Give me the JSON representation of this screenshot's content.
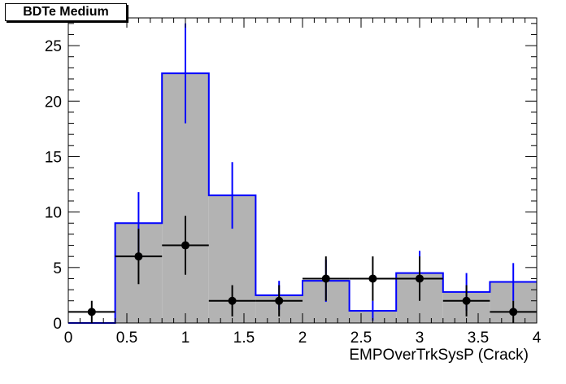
{
  "chart_data": {
    "type": "histogram",
    "title": "BDTe Medium",
    "xlabel": "EMPOverTrkSysP (Crack)",
    "ylabel": "",
    "xlim": [
      0,
      4
    ],
    "ylim": [
      0,
      27.5
    ],
    "x_ticks": [
      "0",
      "0.5",
      "1",
      "1.5",
      "2",
      "2.5",
      "3",
      "3.5",
      "4"
    ],
    "y_ticks": [
      "0",
      "5",
      "10",
      "15",
      "20",
      "25"
    ],
    "grid": false,
    "colors": {
      "mc_fill": "#b3b3b3",
      "mc_line": "#0000ff",
      "data": "#000000"
    },
    "series": [
      {
        "kind": "mc-histogram",
        "bins": [
          {
            "lo": 0.0,
            "hi": 0.4,
            "value": 0.0,
            "err": 0.0
          },
          {
            "lo": 0.4,
            "hi": 0.8,
            "value": 9.0,
            "err": 2.8
          },
          {
            "lo": 0.8,
            "hi": 1.2,
            "value": 22.5,
            "err": 4.5
          },
          {
            "lo": 1.2,
            "hi": 1.6,
            "value": 11.5,
            "err": 3.0
          },
          {
            "lo": 1.6,
            "hi": 2.0,
            "value": 2.5,
            "err": 1.3
          },
          {
            "lo": 2.0,
            "hi": 2.4,
            "value": 3.8,
            "err": 1.9
          },
          {
            "lo": 2.4,
            "hi": 2.8,
            "value": 1.1,
            "err": 0.9
          },
          {
            "lo": 2.8,
            "hi": 3.2,
            "value": 4.5,
            "err": 2.0
          },
          {
            "lo": 3.2,
            "hi": 3.6,
            "value": 2.8,
            "err": 1.7
          },
          {
            "lo": 3.6,
            "hi": 4.0,
            "value": 3.7,
            "err": 1.7
          }
        ]
      },
      {
        "kind": "data-points",
        "points": [
          {
            "x": 0.2,
            "y": 1,
            "xerr": 0.2,
            "yerr": 1.0
          },
          {
            "x": 0.6,
            "y": 6,
            "xerr": 0.2,
            "yerr": 2.5
          },
          {
            "x": 1.0,
            "y": 7,
            "xerr": 0.2,
            "yerr": 2.65
          },
          {
            "x": 1.4,
            "y": 2,
            "xerr": 0.2,
            "yerr": 1.41
          },
          {
            "x": 1.8,
            "y": 2,
            "xerr": 0.2,
            "yerr": 1.41
          },
          {
            "x": 2.2,
            "y": 4,
            "xerr": 0.2,
            "yerr": 2.0
          },
          {
            "x": 2.6,
            "y": 4,
            "xerr": 0.2,
            "yerr": 2.0
          },
          {
            "x": 3.0,
            "y": 4,
            "xerr": 0.2,
            "yerr": 2.0
          },
          {
            "x": 3.4,
            "y": 2,
            "xerr": 0.2,
            "yerr": 1.41
          },
          {
            "x": 3.8,
            "y": 1,
            "xerr": 0.2,
            "yerr": 1.0
          }
        ]
      }
    ]
  }
}
